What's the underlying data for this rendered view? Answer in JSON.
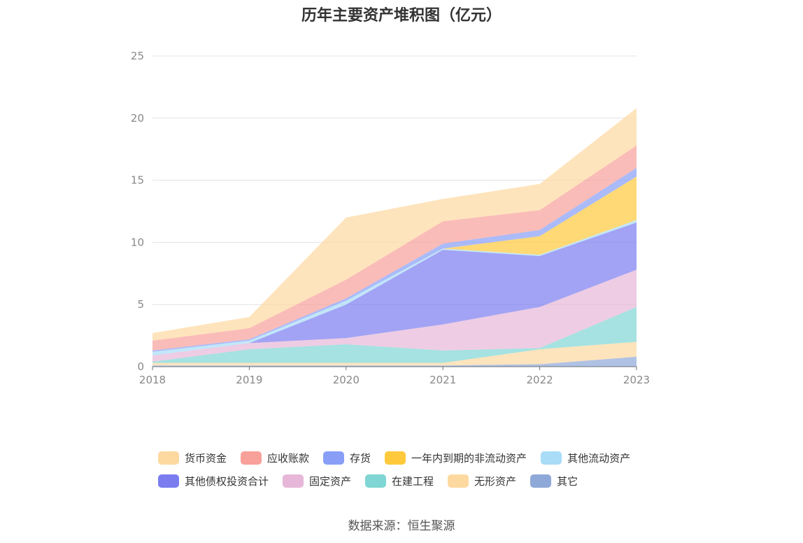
{
  "source_text": "数据来源：恒生聚源",
  "chart_data": {
    "type": "area",
    "stacked": true,
    "title": "历年主要资产堆积图（亿元）",
    "xlabel": "",
    "ylabel": "",
    "categories": [
      "2018",
      "2019",
      "2020",
      "2021",
      "2022",
      "2023"
    ],
    "ylim": [
      0,
      25
    ],
    "yticks": [
      0,
      5,
      10,
      15,
      20,
      25
    ],
    "grid": true,
    "legend_position": "bottom",
    "series": [
      {
        "name": "其它",
        "color": "#8ea8d8",
        "values": [
          0.1,
          0.1,
          0.1,
          0.1,
          0.2,
          0.8
        ]
      },
      {
        "name": "无形资产",
        "color": "#fdd9a0",
        "values": [
          0.2,
          0.2,
          0.2,
          0.2,
          1.2,
          1.2
        ]
      },
      {
        "name": "在建工程",
        "color": "#7fd6d4",
        "values": [
          0.1,
          1.1,
          1.5,
          1.0,
          0.1,
          2.8
        ]
      },
      {
        "name": "固定资产",
        "color": "#e6b7d8",
        "values": [
          0.5,
          0.5,
          0.5,
          2.1,
          3.3,
          3.0
        ]
      },
      {
        "name": "其他债权投资合计",
        "color": "#7a7cf0",
        "values": [
          0.0,
          0.0,
          2.7,
          6.0,
          4.1,
          3.8
        ]
      },
      {
        "name": "其他流动资产",
        "color": "#a8dcf7",
        "values": [
          0.3,
          0.2,
          0.3,
          0.1,
          0.1,
          0.2
        ]
      },
      {
        "name": "一年内到期的非流动资产",
        "color": "#ffc93c",
        "values": [
          0.0,
          0.0,
          0.0,
          0.0,
          1.5,
          3.5
        ]
      },
      {
        "name": "存货",
        "color": "#889ef7",
        "values": [
          0.1,
          0.1,
          0.2,
          0.4,
          0.5,
          0.7
        ]
      },
      {
        "name": "应收账款",
        "color": "#f8a09a",
        "values": [
          0.8,
          0.9,
          1.5,
          1.8,
          1.6,
          1.8
        ]
      },
      {
        "name": "货币资金",
        "color": "#fdd9a0",
        "values": [
          0.6,
          0.9,
          5.0,
          1.8,
          2.1,
          3.0
        ]
      }
    ],
    "legend_rows": [
      [
        "货币资金",
        "应收账款",
        "存货",
        "一年内到期的非流动资产",
        "其他流动资产"
      ],
      [
        "其他债权投资合计",
        "固定资产",
        "在建工程",
        "无形资产",
        "其它"
      ]
    ]
  }
}
